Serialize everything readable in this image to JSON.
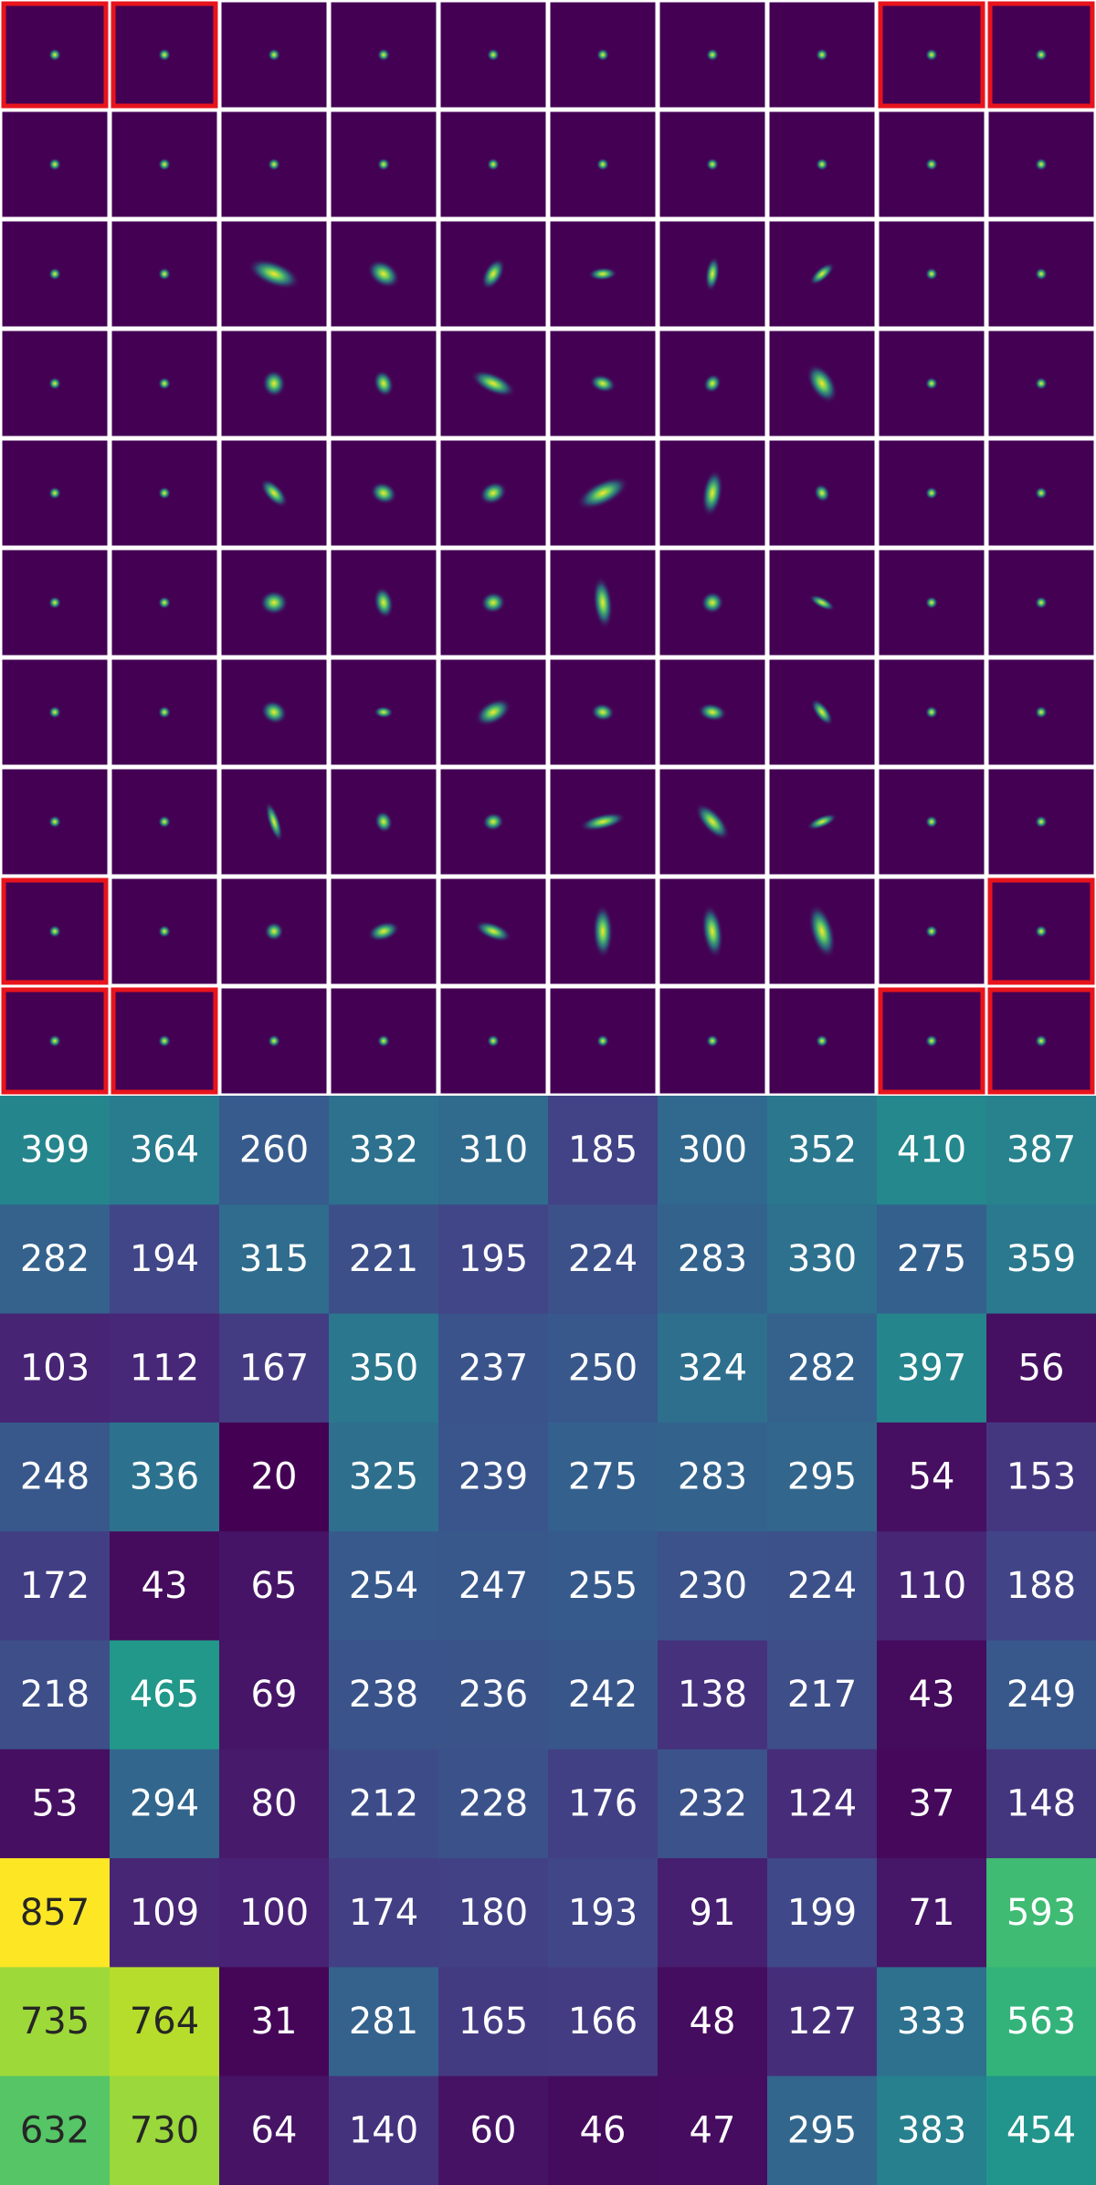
{
  "chart_data": {
    "type": "heatmap",
    "colormap": "viridis",
    "values": [
      [
        399,
        364,
        260,
        332,
        310,
        185,
        300,
        352,
        410,
        387
      ],
      [
        282,
        194,
        315,
        221,
        195,
        224,
        283,
        330,
        275,
        359
      ],
      [
        103,
        112,
        167,
        350,
        237,
        250,
        324,
        282,
        397,
        56
      ],
      [
        248,
        336,
        20,
        325,
        239,
        275,
        283,
        295,
        54,
        153
      ],
      [
        172,
        43,
        65,
        254,
        247,
        255,
        230,
        224,
        110,
        188
      ],
      [
        218,
        465,
        69,
        238,
        236,
        242,
        138,
        217,
        43,
        249
      ],
      [
        53,
        294,
        80,
        212,
        228,
        176,
        232,
        124,
        37,
        148
      ],
      [
        857,
        109,
        100,
        174,
        180,
        193,
        91,
        199,
        71,
        593
      ],
      [
        735,
        764,
        31,
        281,
        165,
        166,
        48,
        127,
        333,
        563
      ],
      [
        632,
        730,
        64,
        140,
        60,
        46,
        47,
        295,
        383,
        454
      ]
    ]
  }
}
